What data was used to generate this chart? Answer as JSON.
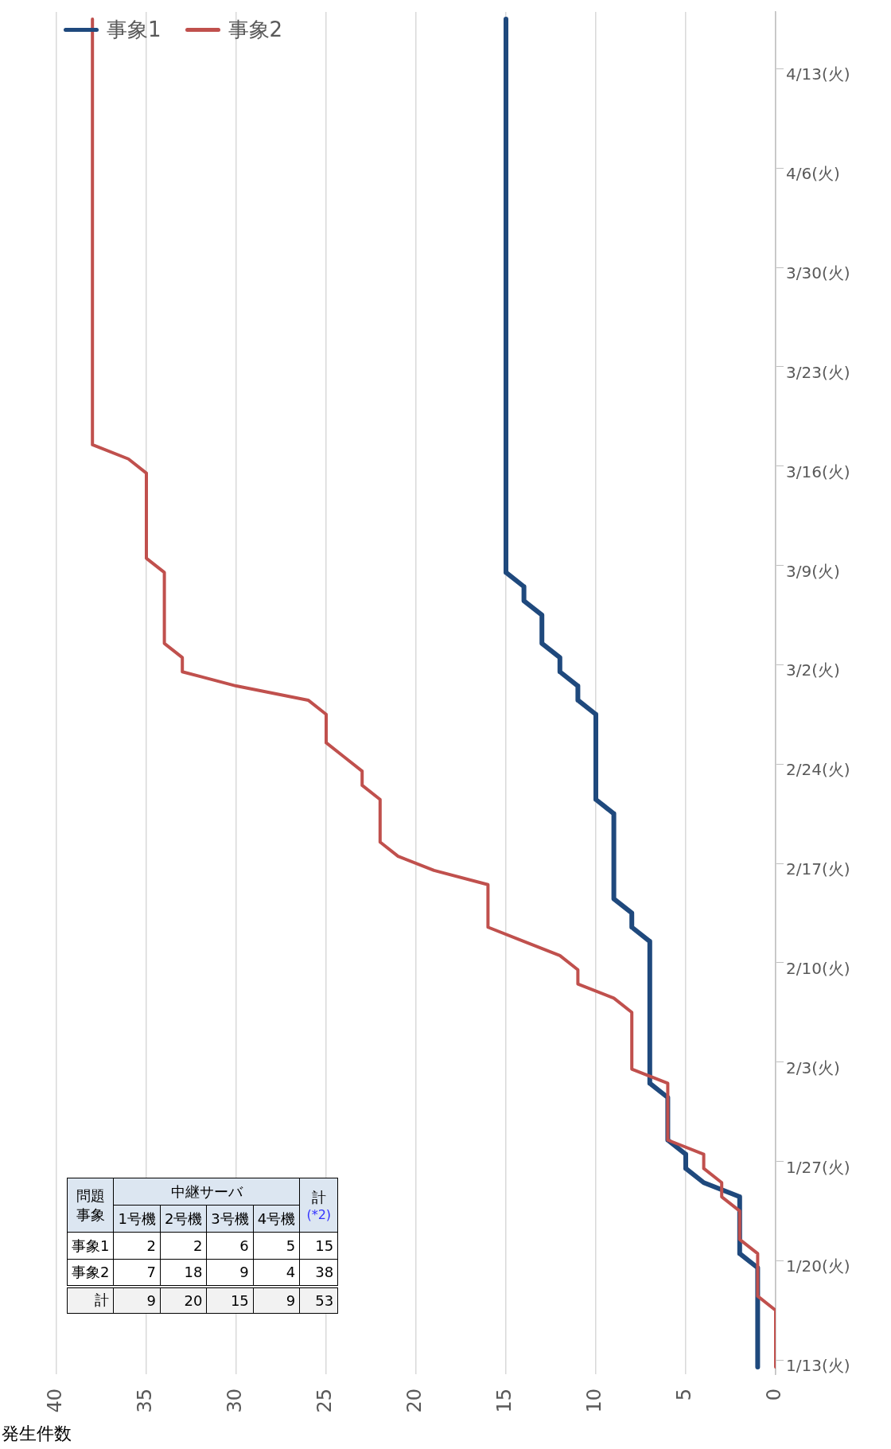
{
  "chart_data": [
    {
      "type": "line",
      "xlabel": "発生件数",
      "orientation": "horizontal",
      "categories": [
        null,
        null,
        null,
        null,
        "4/13(火)",
        null,
        null,
        null,
        null,
        null,
        null,
        "4/6(火)",
        null,
        null,
        null,
        null,
        null,
        null,
        "3/30(火)",
        null,
        null,
        null,
        null,
        null,
        null,
        "3/23(火)",
        null,
        null,
        null,
        null,
        null,
        null,
        "3/16(火)",
        null,
        null,
        null,
        null,
        null,
        null,
        "3/9(火)",
        null,
        null,
        null,
        null,
        null,
        null,
        "3/2(火)",
        null,
        null,
        null,
        null,
        null,
        null,
        "2/24(火)",
        null,
        null,
        null,
        null,
        null,
        null,
        "2/17(火)",
        null,
        null,
        null,
        null,
        null,
        null,
        "2/10(火)",
        null,
        null,
        null,
        null,
        null,
        null,
        "2/3(火)",
        null,
        null,
        null,
        null,
        null,
        null,
        "1/27(火)",
        null,
        null,
        null,
        null,
        null,
        null,
        "1/20(火)",
        null,
        null,
        null,
        null,
        null,
        null,
        "1/13(火)"
      ],
      "series": [
        {
          "name": "事象1",
          "color": "#1f497d",
          "values": [
            15,
            15,
            15,
            15,
            15,
            15,
            15,
            15,
            15,
            15,
            15,
            15,
            15,
            15,
            15,
            15,
            15,
            15,
            15,
            15,
            15,
            15,
            15,
            15,
            15,
            15,
            15,
            15,
            15,
            15,
            15,
            15,
            15,
            15,
            15,
            15,
            15,
            15,
            15,
            15,
            14,
            14,
            13,
            13,
            13,
            12,
            12,
            11,
            11,
            10,
            10,
            10,
            10,
            10,
            10,
            10,
            9,
            9,
            9,
            9,
            9,
            9,
            9,
            8,
            8,
            7,
            7,
            7,
            7,
            7,
            7,
            7,
            7,
            7,
            7,
            7,
            6,
            6,
            6,
            6,
            5,
            5,
            4,
            2,
            2,
            2,
            2,
            2,
            1,
            1,
            1,
            1,
            1,
            1,
            1,
            1
          ]
        },
        {
          "name": "事象2",
          "color": "#c0504d",
          "values": [
            38,
            38,
            38,
            38,
            38,
            38,
            38,
            38,
            38,
            38,
            38,
            38,
            38,
            38,
            38,
            38,
            38,
            38,
            38,
            38,
            38,
            38,
            38,
            38,
            38,
            38,
            38,
            38,
            38,
            38,
            38,
            36,
            35,
            35,
            35,
            35,
            35,
            35,
            35,
            34,
            34,
            34,
            34,
            34,
            34,
            33,
            33,
            30,
            26,
            25,
            25,
            25,
            24,
            23,
            23,
            22,
            22,
            22,
            22,
            21,
            19,
            16,
            16,
            16,
            16,
            14,
            12,
            11,
            11,
            9,
            8,
            8,
            8,
            8,
            8,
            6,
            6,
            6,
            6,
            6,
            4,
            4,
            3,
            3,
            2,
            2,
            2,
            1,
            1,
            1,
            1,
            0,
            0,
            0,
            0,
            0
          ]
        }
      ],
      "xlim": [
        40,
        0
      ],
      "xticks": [
        40,
        35,
        30,
        25,
        20,
        15,
        10,
        5,
        0
      ],
      "grid": "x",
      "legend": "top left",
      "marker": "none"
    },
    {
      "type": "heatmap",
      "title": "中継サーバ",
      "categories": [
        "1号機",
        "2号機",
        "3号機",
        "4号機",
        "計"
      ],
      "y_categories": [
        "事象1",
        "事象2",
        "計"
      ],
      "cells": [
        [
          2,
          2,
          6,
          5,
          15
        ],
        [
          7,
          18,
          9,
          4,
          38
        ],
        [
          9,
          20,
          15,
          9,
          53
        ]
      ],
      "data_labels": true,
      "annotations": [
        "問題",
        "事象",
        "(*2)"
      ]
    }
  ]
}
